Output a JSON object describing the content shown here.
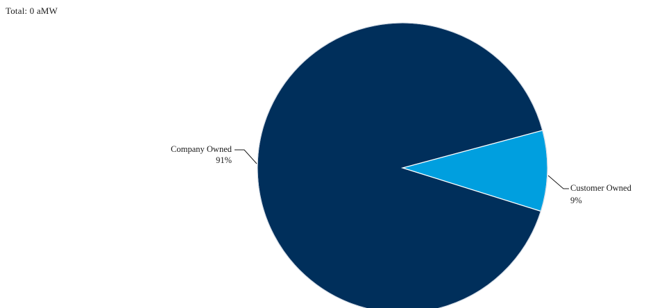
{
  "total_text": "Total: 0 aMW",
  "chart_data": {
    "type": "pie",
    "title": "",
    "start_angle_deg": 72,
    "slices": [
      {
        "name": "Customer Owned",
        "label": "Customer Owned",
        "percent_label": "9%",
        "value": 9,
        "color": "#009fdf"
      },
      {
        "name": "Company Owned",
        "label": "Company Owned",
        "percent_label": "91%",
        "value": 91,
        "color": "#002f5b"
      }
    ],
    "legend": "none",
    "labels": "outside-with-leaders"
  }
}
